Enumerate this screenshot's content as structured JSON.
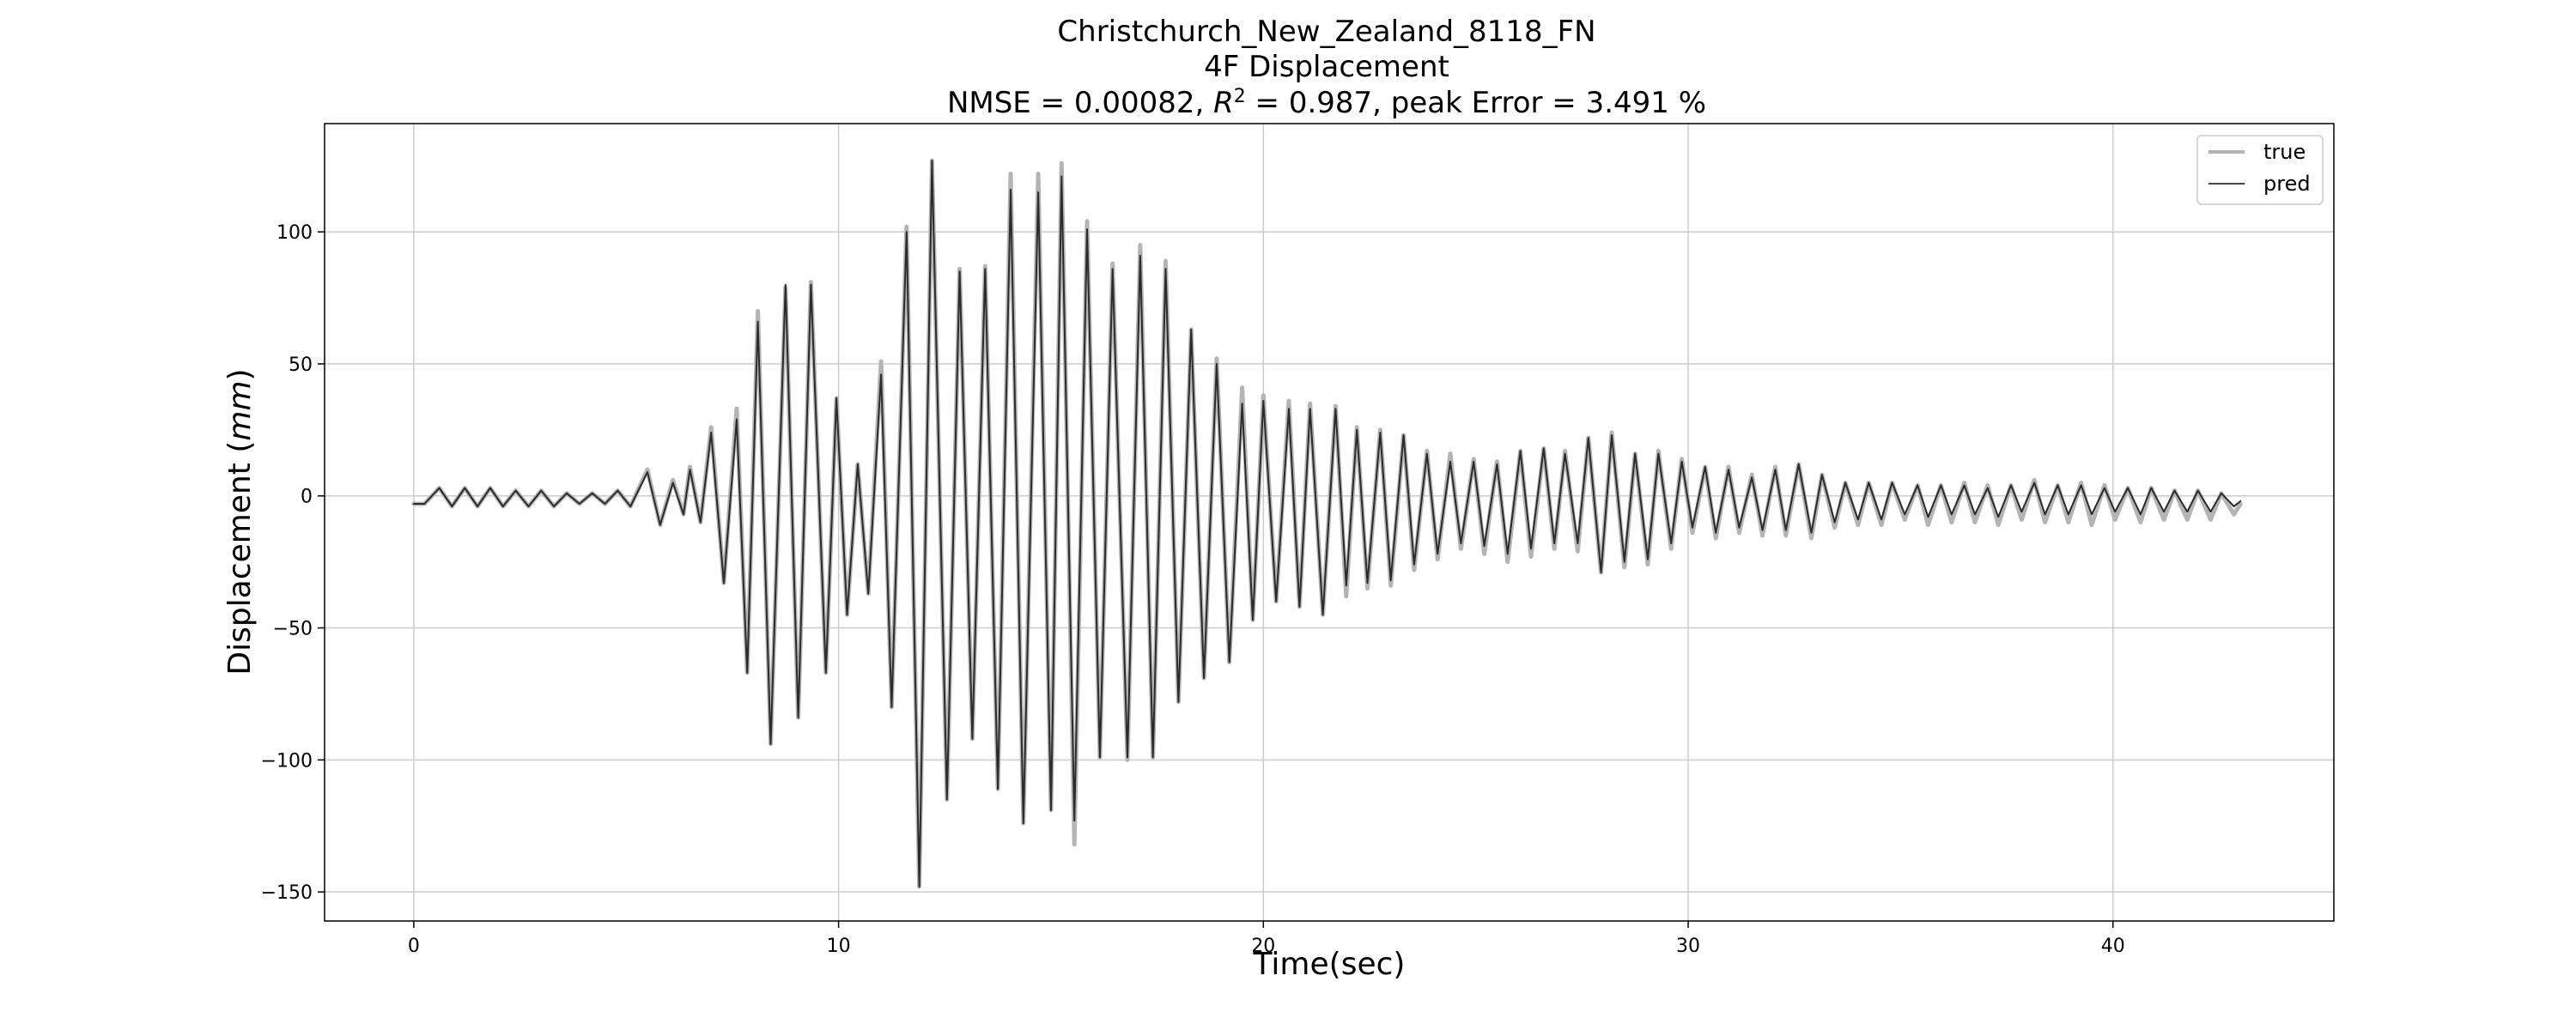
{
  "chart_data": {
    "type": "line",
    "title": "Christchurch_New_Zealand_8118_FN",
    "subtitle": "4F Displacement",
    "metrics": {
      "prefix": "NMSE = 0.00082, ",
      "r2_symbol": "R",
      "r2_exponent": "2",
      "suffix": " = 0.987, peak Error = 3.491 %"
    },
    "xlabel": "Time(sec)",
    "ylabel_prefix": "Displacement (",
    "ylabel_unit": "mm",
    "ylabel_suffix": ")",
    "xlim": [
      -2.1,
      45.2
    ],
    "ylim": [
      -161,
      141
    ],
    "x_ticks": [
      0,
      10,
      20,
      30,
      40
    ],
    "y_ticks": [
      100,
      50,
      0,
      -50,
      -100,
      -150
    ],
    "y_tick_labels": [
      "100",
      "50",
      "0",
      "−50",
      "−100",
      "−150"
    ],
    "grid": true,
    "legend_position": "upper right",
    "series": [
      {
        "name": "true",
        "color": "#b4b4b4",
        "style": "thick",
        "points": [
          [
            0,
            -3
          ],
          [
            0.25,
            -3
          ],
          [
            0.6,
            3
          ],
          [
            0.9,
            -4
          ],
          [
            1.2,
            3
          ],
          [
            1.5,
            -4
          ],
          [
            1.8,
            3
          ],
          [
            2.1,
            -4
          ],
          [
            2.4,
            2
          ],
          [
            2.7,
            -4
          ],
          [
            3.0,
            2
          ],
          [
            3.3,
            -4
          ],
          [
            3.6,
            1
          ],
          [
            3.9,
            -3
          ],
          [
            4.2,
            1
          ],
          [
            4.5,
            -3
          ],
          [
            4.8,
            2
          ],
          [
            5.1,
            -4
          ],
          [
            5.5,
            10
          ],
          [
            5.8,
            -11
          ],
          [
            6.1,
            6
          ],
          [
            6.35,
            -7
          ],
          [
            6.5,
            11
          ],
          [
            6.75,
            -10
          ],
          [
            7.0,
            26
          ],
          [
            7.3,
            -33
          ],
          [
            7.6,
            33
          ],
          [
            7.85,
            -67
          ],
          [
            8.1,
            70
          ],
          [
            8.4,
            -94
          ],
          [
            8.75,
            79
          ],
          [
            9.05,
            -84
          ],
          [
            9.35,
            81
          ],
          [
            9.7,
            -67
          ],
          [
            9.95,
            37
          ],
          [
            10.2,
            -45
          ],
          [
            10.45,
            12
          ],
          [
            10.7,
            -37
          ],
          [
            11.0,
            51
          ],
          [
            11.25,
            -80
          ],
          [
            11.6,
            102
          ],
          [
            11.9,
            -148
          ],
          [
            12.2,
            127
          ],
          [
            12.55,
            -115
          ],
          [
            12.85,
            86
          ],
          [
            13.15,
            -92
          ],
          [
            13.45,
            87
          ],
          [
            13.75,
            -111
          ],
          [
            14.05,
            122
          ],
          [
            14.35,
            -124
          ],
          [
            14.7,
            122
          ],
          [
            15.0,
            -119
          ],
          [
            15.25,
            126
          ],
          [
            15.55,
            -132
          ],
          [
            15.85,
            104
          ],
          [
            16.15,
            -99
          ],
          [
            16.45,
            88
          ],
          [
            16.8,
            -100
          ],
          [
            17.1,
            95
          ],
          [
            17.4,
            -99
          ],
          [
            17.7,
            89
          ],
          [
            18.0,
            -78
          ],
          [
            18.3,
            63
          ],
          [
            18.6,
            -69
          ],
          [
            18.9,
            52
          ],
          [
            19.2,
            -63
          ],
          [
            19.5,
            41
          ],
          [
            19.75,
            -47
          ],
          [
            20.0,
            38
          ],
          [
            20.3,
            -40
          ],
          [
            20.6,
            36
          ],
          [
            20.85,
            -42
          ],
          [
            21.1,
            35
          ],
          [
            21.4,
            -45
          ],
          [
            21.7,
            34
          ],
          [
            21.95,
            -38
          ],
          [
            22.2,
            26
          ],
          [
            22.45,
            -35
          ],
          [
            22.75,
            25
          ],
          [
            23.0,
            -34
          ],
          [
            23.3,
            23
          ],
          [
            23.55,
            -28
          ],
          [
            23.85,
            17
          ],
          [
            24.1,
            -24
          ],
          [
            24.4,
            16
          ],
          [
            24.65,
            -20
          ],
          [
            24.95,
            14
          ],
          [
            25.2,
            -22
          ],
          [
            25.5,
            13
          ],
          [
            25.75,
            -25
          ],
          [
            26.05,
            17
          ],
          [
            26.3,
            -23
          ],
          [
            26.6,
            18
          ],
          [
            26.85,
            -20
          ],
          [
            27.1,
            17
          ],
          [
            27.4,
            -21
          ],
          [
            27.65,
            22
          ],
          [
            27.95,
            -29
          ],
          [
            28.2,
            24
          ],
          [
            28.5,
            -27
          ],
          [
            28.75,
            16
          ],
          [
            29.05,
            -26
          ],
          [
            29.3,
            17
          ],
          [
            29.6,
            -20
          ],
          [
            29.85,
            14
          ],
          [
            30.1,
            -14
          ],
          [
            30.4,
            11
          ],
          [
            30.65,
            -16
          ],
          [
            30.95,
            11
          ],
          [
            31.2,
            -14
          ],
          [
            31.5,
            8
          ],
          [
            31.75,
            -15
          ],
          [
            32.05,
            11
          ],
          [
            32.3,
            -15
          ],
          [
            32.6,
            12
          ],
          [
            32.9,
            -16
          ],
          [
            33.15,
            8
          ],
          [
            33.45,
            -12
          ],
          [
            33.7,
            5
          ],
          [
            34.0,
            -11
          ],
          [
            34.25,
            5
          ],
          [
            34.55,
            -11
          ],
          [
            34.8,
            5
          ],
          [
            35.1,
            -9
          ],
          [
            35.4,
            4
          ],
          [
            35.65,
            -11
          ],
          [
            35.95,
            4
          ],
          [
            36.2,
            -10
          ],
          [
            36.5,
            5
          ],
          [
            36.75,
            -10
          ],
          [
            37.05,
            4
          ],
          [
            37.3,
            -11
          ],
          [
            37.6,
            4
          ],
          [
            37.85,
            -9
          ],
          [
            38.15,
            6
          ],
          [
            38.4,
            -10
          ],
          [
            38.7,
            4
          ],
          [
            38.95,
            -10
          ],
          [
            39.25,
            5
          ],
          [
            39.5,
            -11
          ],
          [
            39.8,
            4
          ],
          [
            40.05,
            -9
          ],
          [
            40.35,
            3
          ],
          [
            40.65,
            -10
          ],
          [
            40.9,
            3
          ],
          [
            41.2,
            -9
          ],
          [
            41.45,
            2
          ],
          [
            41.75,
            -9
          ],
          [
            42.0,
            2
          ],
          [
            42.3,
            -9
          ],
          [
            42.55,
            1
          ],
          [
            42.85,
            -7
          ],
          [
            43.0,
            -3
          ]
        ]
      },
      {
        "name": "pred",
        "color": "#2b2b2b",
        "style": "thin",
        "points": [
          [
            0,
            -3
          ],
          [
            0.25,
            -3
          ],
          [
            0.6,
            3
          ],
          [
            0.9,
            -4
          ],
          [
            1.2,
            3
          ],
          [
            1.5,
            -4
          ],
          [
            1.8,
            3
          ],
          [
            2.1,
            -4
          ],
          [
            2.4,
            2
          ],
          [
            2.7,
            -4
          ],
          [
            3.0,
            2
          ],
          [
            3.3,
            -4
          ],
          [
            3.6,
            1
          ],
          [
            3.9,
            -3
          ],
          [
            4.2,
            1
          ],
          [
            4.5,
            -3
          ],
          [
            4.8,
            2
          ],
          [
            5.1,
            -4
          ],
          [
            5.5,
            9
          ],
          [
            5.8,
            -11
          ],
          [
            6.1,
            5
          ],
          [
            6.35,
            -7
          ],
          [
            6.5,
            10
          ],
          [
            6.75,
            -10
          ],
          [
            7.0,
            24
          ],
          [
            7.3,
            -33
          ],
          [
            7.6,
            29
          ],
          [
            7.85,
            -67
          ],
          [
            8.1,
            66
          ],
          [
            8.4,
            -94
          ],
          [
            8.75,
            80
          ],
          [
            9.05,
            -84
          ],
          [
            9.35,
            80
          ],
          [
            9.7,
            -67
          ],
          [
            9.95,
            37
          ],
          [
            10.2,
            -45
          ],
          [
            10.45,
            12
          ],
          [
            10.7,
            -37
          ],
          [
            11.0,
            46
          ],
          [
            11.25,
            -80
          ],
          [
            11.6,
            100
          ],
          [
            11.9,
            -148
          ],
          [
            12.2,
            127
          ],
          [
            12.55,
            -115
          ],
          [
            12.85,
            85
          ],
          [
            13.15,
            -92
          ],
          [
            13.45,
            86
          ],
          [
            13.75,
            -111
          ],
          [
            14.05,
            116
          ],
          [
            14.35,
            -124
          ],
          [
            14.7,
            115
          ],
          [
            15.0,
            -119
          ],
          [
            15.25,
            121
          ],
          [
            15.55,
            -123
          ],
          [
            15.85,
            101
          ],
          [
            16.15,
            -99
          ],
          [
            16.45,
            86
          ],
          [
            16.8,
            -99
          ],
          [
            17.1,
            91
          ],
          [
            17.4,
            -99
          ],
          [
            17.7,
            86
          ],
          [
            18.0,
            -78
          ],
          [
            18.3,
            63
          ],
          [
            18.6,
            -69
          ],
          [
            18.9,
            50
          ],
          [
            19.2,
            -63
          ],
          [
            19.5,
            35
          ],
          [
            19.75,
            -47
          ],
          [
            20.0,
            36
          ],
          [
            20.3,
            -40
          ],
          [
            20.6,
            33
          ],
          [
            20.85,
            -42
          ],
          [
            21.1,
            33
          ],
          [
            21.4,
            -45
          ],
          [
            21.7,
            33
          ],
          [
            21.95,
            -34
          ],
          [
            22.2,
            25
          ],
          [
            22.45,
            -33
          ],
          [
            22.75,
            24
          ],
          [
            23.0,
            -32
          ],
          [
            23.3,
            23
          ],
          [
            23.55,
            -26
          ],
          [
            23.85,
            16
          ],
          [
            24.1,
            -22
          ],
          [
            24.4,
            13
          ],
          [
            24.65,
            -18
          ],
          [
            24.95,
            13
          ],
          [
            25.2,
            -19
          ],
          [
            25.5,
            12
          ],
          [
            25.75,
            -22
          ],
          [
            26.05,
            17
          ],
          [
            26.3,
            -20
          ],
          [
            26.6,
            18
          ],
          [
            26.85,
            -18
          ],
          [
            27.1,
            16
          ],
          [
            27.4,
            -18
          ],
          [
            27.65,
            22
          ],
          [
            27.95,
            -29
          ],
          [
            28.2,
            23
          ],
          [
            28.5,
            -25
          ],
          [
            28.75,
            16
          ],
          [
            29.05,
            -24
          ],
          [
            29.3,
            16
          ],
          [
            29.6,
            -18
          ],
          [
            29.85,
            13
          ],
          [
            30.1,
            -12
          ],
          [
            30.4,
            11
          ],
          [
            30.65,
            -14
          ],
          [
            30.95,
            10
          ],
          [
            31.2,
            -12
          ],
          [
            31.5,
            7
          ],
          [
            31.75,
            -13
          ],
          [
            32.05,
            10
          ],
          [
            32.3,
            -13
          ],
          [
            32.6,
            12
          ],
          [
            32.9,
            -14
          ],
          [
            33.15,
            8
          ],
          [
            33.45,
            -10
          ],
          [
            33.7,
            5
          ],
          [
            34.0,
            -9
          ],
          [
            34.25,
            5
          ],
          [
            34.55,
            -9
          ],
          [
            34.8,
            5
          ],
          [
            35.1,
            -7
          ],
          [
            35.4,
            4
          ],
          [
            35.65,
            -8
          ],
          [
            35.95,
            4
          ],
          [
            36.2,
            -7
          ],
          [
            36.5,
            4
          ],
          [
            36.75,
            -7
          ],
          [
            37.05,
            3
          ],
          [
            37.3,
            -8
          ],
          [
            37.6,
            4
          ],
          [
            37.85,
            -6
          ],
          [
            38.15,
            5
          ],
          [
            38.4,
            -7
          ],
          [
            38.7,
            4
          ],
          [
            38.95,
            -7
          ],
          [
            39.25,
            4
          ],
          [
            39.5,
            -7
          ],
          [
            39.8,
            3
          ],
          [
            40.05,
            -6
          ],
          [
            40.35,
            3
          ],
          [
            40.65,
            -7
          ],
          [
            40.9,
            3
          ],
          [
            41.2,
            -6
          ],
          [
            41.45,
            2
          ],
          [
            41.75,
            -6
          ],
          [
            42.0,
            2
          ],
          [
            42.3,
            -6
          ],
          [
            42.55,
            1
          ],
          [
            42.85,
            -4
          ],
          [
            43.0,
            -2
          ]
        ]
      }
    ]
  },
  "colors": {
    "background": "#ffffff",
    "axes": "#000000",
    "grid": "#cccccc"
  }
}
